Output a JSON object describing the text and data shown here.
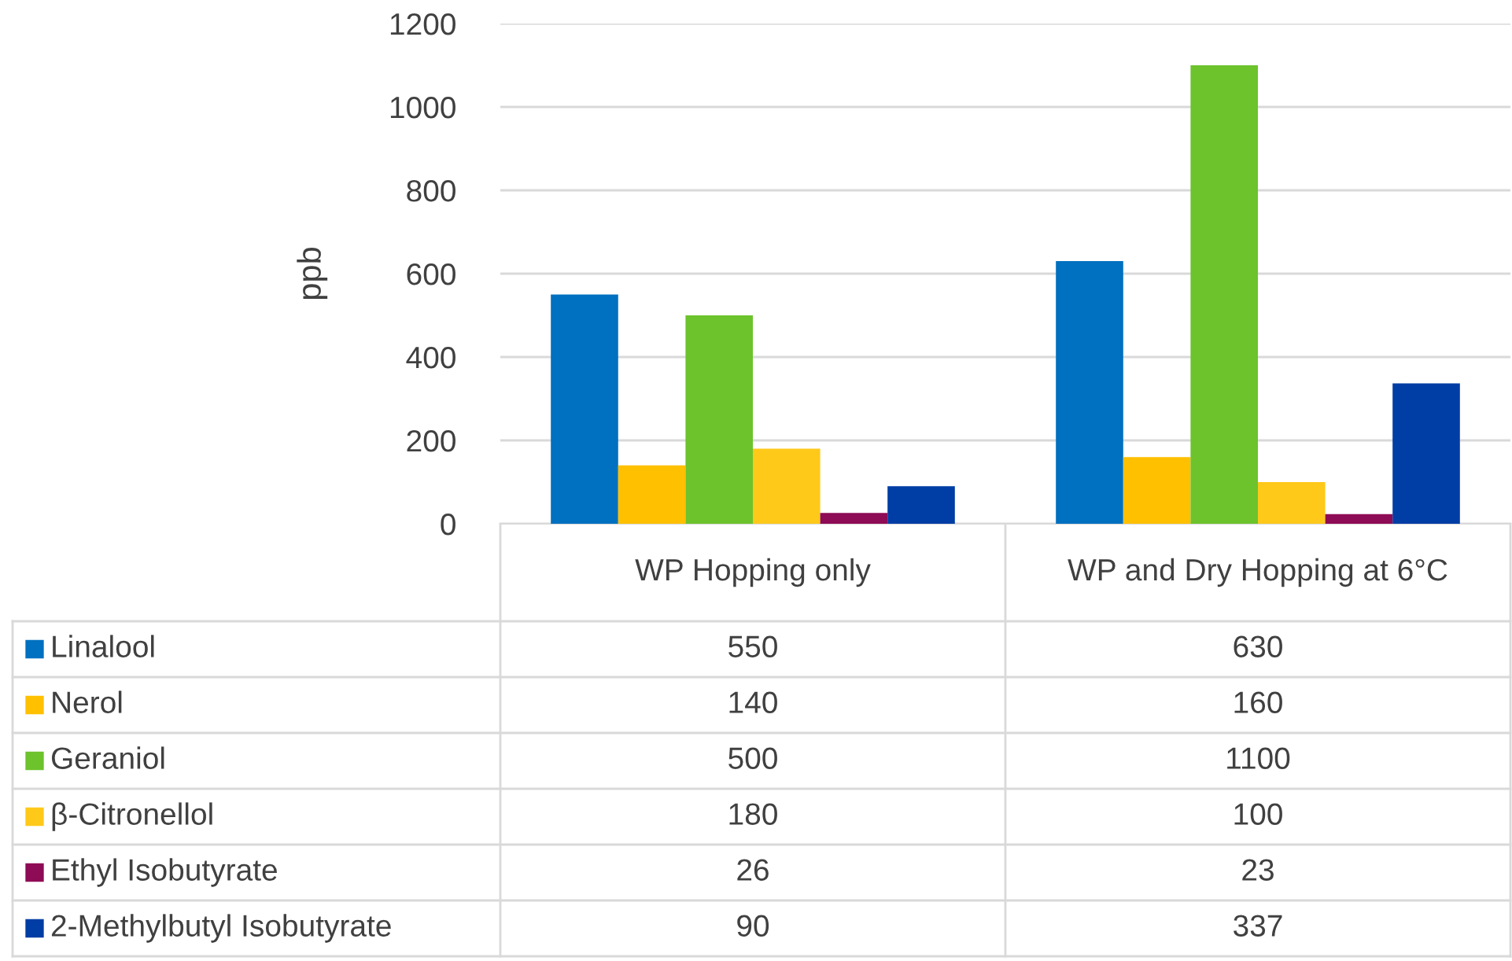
{
  "chart_data": {
    "type": "bar",
    "ylabel": "ppb",
    "categories": [
      "WP Hopping only",
      "WP and Dry Hopping at 6°C"
    ],
    "series": [
      {
        "name": "Linalool",
        "color": "#0070c0",
        "values": [
          550,
          630
        ]
      },
      {
        "name": "Nerol",
        "color": "#ffc000",
        "values": [
          140,
          160
        ]
      },
      {
        "name": "Geraniol",
        "color": "#6cc32c",
        "values": [
          500,
          1100
        ]
      },
      {
        "name": "β-Citronellol",
        "color": "#ffc91a",
        "values": [
          180,
          100
        ]
      },
      {
        "name": "Ethyl Isobutyrate",
        "color": "#8e0b55",
        "values": [
          26,
          23
        ]
      },
      {
        "name": "2-Methylbutyl Isobutyrate",
        "color": "#003da5",
        "values": [
          90,
          337
        ]
      }
    ],
    "ylim": [
      0,
      1200
    ],
    "yticks": [
      0,
      200,
      400,
      600,
      800,
      1000,
      1200
    ],
    "grid": "y",
    "data_labels": true,
    "legend": "bottom left"
  }
}
